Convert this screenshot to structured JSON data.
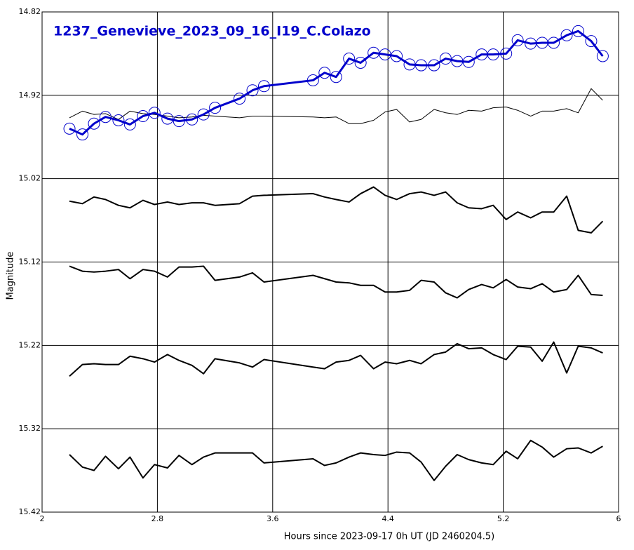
{
  "chart_data": {
    "type": "line",
    "title": "1237_Genevieve_2023_09_16_I19_C.Colazo",
    "title_color": "#0000cc",
    "x_label": "Hours since 2023-09-17 0h UT (JD 2460204.5)",
    "y_label": "Magnitude",
    "xlim": [
      2,
      6
    ],
    "xticks": [
      2,
      2.8,
      3.6,
      4.4,
      5.2,
      6
    ],
    "ylim": [
      15.42,
      14.82
    ],
    "yticks": [
      14.82,
      14.92,
      15.02,
      15.12,
      15.22,
      15.32,
      15.42
    ],
    "grid": true,
    "x": [
      2.19,
      2.28,
      2.36,
      2.44,
      2.53,
      2.61,
      2.7,
      2.78,
      2.87,
      2.95,
      3.04,
      3.12,
      3.2,
      3.37,
      3.46,
      3.54,
      3.88,
      3.96,
      4.04,
      4.13,
      4.21,
      4.3,
      4.38,
      4.46,
      4.55,
      4.63,
      4.72,
      4.8,
      4.88,
      4.96,
      5.05,
      5.13,
      5.22,
      5.3,
      5.39,
      5.47,
      5.55,
      5.64,
      5.72,
      5.81,
      5.89
    ],
    "series": [
      {
        "color": "#0000cc",
        "line_width": 3,
        "marker": "circle",
        "values": [
          14.96,
          14.967,
          14.954,
          14.946,
          14.95,
          14.955,
          14.945,
          14.941,
          14.948,
          14.951,
          14.949,
          14.943,
          14.935,
          14.924,
          14.914,
          14.909,
          14.902,
          14.893,
          14.898,
          14.876,
          14.881,
          14.869,
          14.871,
          14.873,
          14.883,
          14.884,
          14.884,
          14.876,
          14.879,
          14.88,
          14.871,
          14.871,
          14.87,
          14.854,
          14.858,
          14.857,
          14.857,
          14.848,
          14.843,
          14.855,
          14.873
        ]
      },
      {
        "color": "#000000",
        "line_width": 1,
        "values": [
          14.947,
          14.939,
          14.943,
          14.942,
          14.949,
          14.939,
          14.942,
          14.943,
          14.945,
          14.947,
          14.946,
          14.944,
          14.945,
          14.947,
          14.945,
          14.945,
          14.946,
          14.947,
          14.946,
          14.954,
          14.954,
          14.95,
          14.94,
          14.937,
          14.952,
          14.949,
          14.937,
          14.941,
          14.943,
          14.938,
          14.939,
          14.935,
          14.934,
          14.938,
          14.945,
          14.939,
          14.939,
          14.936,
          14.941,
          14.912,
          14.926
        ]
      },
      {
        "color": "#000000",
        "line_width": 2,
        "values": [
          15.047,
          15.05,
          15.042,
          15.045,
          15.052,
          15.055,
          15.046,
          15.051,
          15.048,
          15.051,
          15.049,
          15.049,
          15.052,
          15.05,
          15.041,
          15.04,
          15.038,
          15.042,
          15.045,
          15.048,
          15.038,
          15.03,
          15.04,
          15.045,
          15.038,
          15.036,
          15.04,
          15.036,
          15.049,
          15.055,
          15.056,
          15.052,
          15.069,
          15.06,
          15.067,
          15.06,
          15.06,
          15.041,
          15.082,
          15.085,
          15.071
        ]
      },
      {
        "color": "#000000",
        "line_width": 2,
        "values": [
          15.125,
          15.131,
          15.132,
          15.131,
          15.129,
          15.14,
          15.129,
          15.131,
          15.138,
          15.126,
          15.126,
          15.125,
          15.142,
          15.138,
          15.133,
          15.144,
          15.136,
          15.14,
          15.144,
          15.145,
          15.148,
          15.148,
          15.156,
          15.156,
          15.154,
          15.142,
          15.144,
          15.157,
          15.163,
          15.153,
          15.147,
          15.151,
          15.141,
          15.15,
          15.152,
          15.146,
          15.156,
          15.153,
          15.136,
          15.159,
          15.16
        ]
      },
      {
        "color": "#000000",
        "line_width": 2,
        "values": [
          15.257,
          15.243,
          15.242,
          15.243,
          15.243,
          15.233,
          15.236,
          15.24,
          15.231,
          15.238,
          15.244,
          15.254,
          15.236,
          15.241,
          15.246,
          15.237,
          15.246,
          15.248,
          15.24,
          15.238,
          15.232,
          15.248,
          15.24,
          15.242,
          15.238,
          15.242,
          15.231,
          15.228,
          15.218,
          15.224,
          15.223,
          15.231,
          15.237,
          15.221,
          15.222,
          15.239,
          15.216,
          15.253,
          15.221,
          15.223,
          15.229
        ]
      },
      {
        "color": "#000000",
        "line_width": 2,
        "values": [
          15.351,
          15.366,
          15.37,
          15.353,
          15.368,
          15.354,
          15.379,
          15.363,
          15.367,
          15.352,
          15.363,
          15.354,
          15.349,
          15.349,
          15.349,
          15.361,
          15.356,
          15.364,
          15.361,
          15.354,
          15.349,
          15.351,
          15.352,
          15.348,
          15.349,
          15.36,
          15.382,
          15.365,
          15.351,
          15.357,
          15.361,
          15.363,
          15.347,
          15.356,
          15.334,
          15.342,
          15.354,
          15.344,
          15.343,
          15.349,
          15.341
        ]
      }
    ]
  }
}
